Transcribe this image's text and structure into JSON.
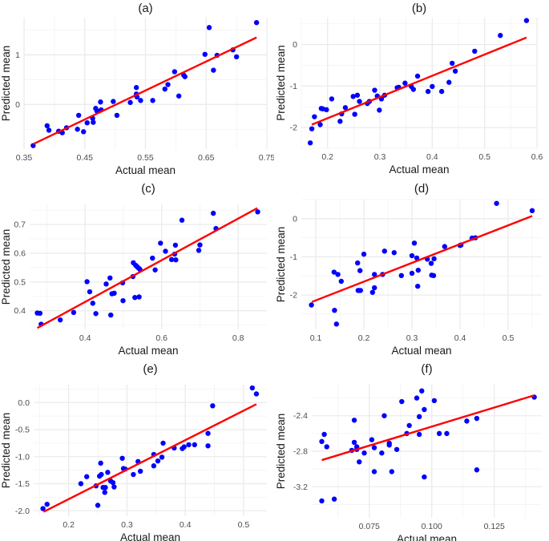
{
  "chart_data": [
    {
      "type": "scatter",
      "title": "(a)",
      "xlabel": "Actual mean",
      "ylabel": "Predicted mean",
      "xlim": [
        0.35,
        0.75
      ],
      "ylim": [
        -0.9,
        1.75
      ],
      "xticks": [
        0.35,
        0.45,
        0.55,
        0.65,
        0.75
      ],
      "xtick_labels": [
        "0.35",
        "0.45",
        "0.55",
        "0.65",
        "0.75"
      ],
      "yticks": [
        0,
        1
      ],
      "ytick_labels": [
        "0",
        "1"
      ],
      "grid": true,
      "point_color": "#0000ff",
      "line_color": "#ff0000",
      "fit_line": [
        [
          0.365,
          -0.8
        ],
        [
          0.733,
          1.35
        ]
      ],
      "points": [
        [
          0.365,
          -0.83
        ],
        [
          0.388,
          -0.43
        ],
        [
          0.391,
          -0.52
        ],
        [
          0.407,
          -0.54
        ],
        [
          0.413,
          -0.57
        ],
        [
          0.42,
          -0.47
        ],
        [
          0.44,
          -0.22
        ],
        [
          0.438,
          -0.5
        ],
        [
          0.448,
          -0.55
        ],
        [
          0.454,
          -0.37
        ],
        [
          0.463,
          -0.28
        ],
        [
          0.464,
          -0.36
        ],
        [
          0.468,
          -0.08
        ],
        [
          0.47,
          -0.13
        ],
        [
          0.476,
          0.05
        ],
        [
          0.477,
          -0.11
        ],
        [
          0.497,
          0.06
        ],
        [
          0.503,
          -0.22
        ],
        [
          0.525,
          0.04
        ],
        [
          0.535,
          0.34
        ],
        [
          0.535,
          0.21
        ],
        [
          0.536,
          0.15
        ],
        [
          0.542,
          0.08
        ],
        [
          0.562,
          0.08
        ],
        [
          0.582,
          0.31
        ],
        [
          0.587,
          0.4
        ],
        [
          0.598,
          0.66
        ],
        [
          0.605,
          0.17
        ],
        [
          0.613,
          0.59
        ],
        [
          0.615,
          0.56
        ],
        [
          0.648,
          1.01
        ],
        [
          0.655,
          1.55
        ],
        [
          0.662,
          0.69
        ],
        [
          0.668,
          0.99
        ],
        [
          0.694,
          1.1
        ],
        [
          0.7,
          0.96
        ],
        [
          0.733,
          1.65
        ]
      ]
    },
    {
      "type": "scatter",
      "title": "(b)",
      "xlabel": "Actual mean",
      "ylabel": "Predicted mean",
      "xlim": [
        0.15,
        0.6
      ],
      "ylim": [
        -2.5,
        0.65
      ],
      "xticks": [
        0.2,
        0.3,
        0.4,
        0.5,
        0.6
      ],
      "xtick_labels": [
        "0.2",
        "0.3",
        "0.4",
        "0.5",
        "0.6"
      ],
      "yticks": [
        -2,
        -1,
        0
      ],
      "ytick_labels": [
        "-2",
        "-1",
        "0"
      ],
      "grid": true,
      "point_color": "#0000ff",
      "line_color": "#ff0000",
      "fit_line": [
        [
          0.17,
          -1.93
        ],
        [
          0.58,
          0.17
        ]
      ],
      "points": [
        [
          0.167,
          -2.37
        ],
        [
          0.17,
          -2.03
        ],
        [
          0.175,
          -1.74
        ],
        [
          0.186,
          -1.93
        ],
        [
          0.188,
          -1.54
        ],
        [
          0.191,
          -1.55
        ],
        [
          0.198,
          -1.57
        ],
        [
          0.208,
          -1.31
        ],
        [
          0.224,
          -1.85
        ],
        [
          0.227,
          -1.67
        ],
        [
          0.234,
          -1.52
        ],
        [
          0.249,
          -1.25
        ],
        [
          0.252,
          -1.68
        ],
        [
          0.257,
          -1.22
        ],
        [
          0.261,
          -1.37
        ],
        [
          0.276,
          -1.42
        ],
        [
          0.28,
          -1.37
        ],
        [
          0.29,
          -1.1
        ],
        [
          0.295,
          -1.24
        ],
        [
          0.299,
          -1.58
        ],
        [
          0.303,
          -1.31
        ],
        [
          0.309,
          -1.22
        ],
        [
          0.333,
          -1.04
        ],
        [
          0.336,
          -1.03
        ],
        [
          0.348,
          -0.93
        ],
        [
          0.36,
          -1.01
        ],
        [
          0.364,
          -1.08
        ],
        [
          0.372,
          -0.76
        ],
        [
          0.392,
          -1.13
        ],
        [
          0.4,
          -1.01
        ],
        [
          0.418,
          -1.13
        ],
        [
          0.432,
          -0.91
        ],
        [
          0.438,
          -0.45
        ],
        [
          0.444,
          -0.64
        ],
        [
          0.481,
          -0.16
        ],
        [
          0.53,
          0.22
        ],
        [
          0.58,
          0.58
        ]
      ]
    },
    {
      "type": "scatter",
      "title": "(c)",
      "xlabel": "Actual mean",
      "ylabel": "Predicted mean",
      "xlim": [
        0.255,
        0.875
      ],
      "ylim": [
        0.335,
        0.77
      ],
      "xticks": [
        0.4,
        0.6,
        0.8
      ],
      "xtick_labels": [
        "0.4",
        "0.6",
        "0.8"
      ],
      "yticks": [
        0.4,
        0.5,
        0.6,
        0.7
      ],
      "ytick_labels": [
        "0.4",
        "0.5",
        "0.6",
        "0.7"
      ],
      "grid": true,
      "point_color": "#0000ff",
      "line_color": "#ff0000",
      "fit_line": [
        [
          0.275,
          0.34
        ],
        [
          0.85,
          0.757
        ]
      ],
      "points": [
        [
          0.275,
          0.392
        ],
        [
          0.282,
          0.391
        ],
        [
          0.285,
          0.353
        ],
        [
          0.335,
          0.368
        ],
        [
          0.37,
          0.394
        ],
        [
          0.405,
          0.501
        ],
        [
          0.412,
          0.466
        ],
        [
          0.42,
          0.426
        ],
        [
          0.428,
          0.39
        ],
        [
          0.455,
          0.493
        ],
        [
          0.465,
          0.514
        ],
        [
          0.467,
          0.385
        ],
        [
          0.47,
          0.459
        ],
        [
          0.476,
          0.461
        ],
        [
          0.498,
          0.497
        ],
        [
          0.499,
          0.435
        ],
        [
          0.525,
          0.519
        ],
        [
          0.526,
          0.567
        ],
        [
          0.53,
          0.446
        ],
        [
          0.532,
          0.558
        ],
        [
          0.536,
          0.553
        ],
        [
          0.54,
          0.548
        ],
        [
          0.543,
          0.544
        ],
        [
          0.541,
          0.448
        ],
        [
          0.576,
          0.583
        ],
        [
          0.583,
          0.542
        ],
        [
          0.597,
          0.635
        ],
        [
          0.61,
          0.607
        ],
        [
          0.626,
          0.578
        ],
        [
          0.634,
          0.597
        ],
        [
          0.636,
          0.628
        ],
        [
          0.637,
          0.577
        ],
        [
          0.653,
          0.715
        ],
        [
          0.697,
          0.61
        ],
        [
          0.7,
          0.629
        ],
        [
          0.735,
          0.739
        ],
        [
          0.742,
          0.686
        ],
        [
          0.851,
          0.744
        ]
      ]
    },
    {
      "type": "scatter",
      "title": "(d)",
      "xlabel": "Actual mean",
      "ylabel": "Predicted mean",
      "xlim": [
        0.07,
        0.57
      ],
      "ylim": [
        -2.9,
        0.5
      ],
      "xticks": [
        0.1,
        0.2,
        0.3,
        0.4,
        0.5
      ],
      "xtick_labels": [
        "0.1",
        "0.2",
        "0.3",
        "0.4",
        "0.5"
      ],
      "yticks": [
        -2,
        -1,
        0
      ],
      "ytick_labels": [
        "-2",
        "-1",
        "0"
      ],
      "grid": true,
      "point_color": "#0000ff",
      "line_color": "#ff0000",
      "fit_line": [
        [
          0.092,
          -2.18
        ],
        [
          0.55,
          0.07
        ]
      ],
      "points": [
        [
          0.091,
          -2.26
        ],
        [
          0.138,
          -1.4
        ],
        [
          0.139,
          -2.4
        ],
        [
          0.143,
          -2.76
        ],
        [
          0.146,
          -1.46
        ],
        [
          0.153,
          -1.64
        ],
        [
          0.187,
          -1.16
        ],
        [
          0.188,
          -1.88
        ],
        [
          0.19,
          -1.88
        ],
        [
          0.192,
          -1.36
        ],
        [
          0.193,
          -1.88
        ],
        [
          0.2,
          -0.93
        ],
        [
          0.218,
          -1.93
        ],
        [
          0.222,
          -1.81
        ],
        [
          0.222,
          -1.46
        ],
        [
          0.239,
          -1.46
        ],
        [
          0.243,
          -0.85
        ],
        [
          0.263,
          -0.89
        ],
        [
          0.278,
          -1.49
        ],
        [
          0.3,
          -0.97
        ],
        [
          0.3,
          -1.43
        ],
        [
          0.305,
          -0.64
        ],
        [
          0.31,
          -1.03
        ],
        [
          0.312,
          -1.77
        ],
        [
          0.313,
          -1.35
        ],
        [
          0.332,
          -1.06
        ],
        [
          0.34,
          -1.17
        ],
        [
          0.341,
          -1.48
        ],
        [
          0.345,
          -1.49
        ],
        [
          0.346,
          -1.05
        ],
        [
          0.368,
          -0.73
        ],
        [
          0.4,
          -0.7
        ],
        [
          0.402,
          -0.69
        ],
        [
          0.425,
          -0.51
        ],
        [
          0.432,
          -0.5
        ],
        [
          0.476,
          0.4
        ],
        [
          0.55,
          0.21
        ]
      ]
    },
    {
      "type": "scatter",
      "title": "(e)",
      "xlabel": "Actual mean",
      "ylabel": "Predicted mean",
      "xlim": [
        0.14,
        0.54
      ],
      "ylim": [
        -2.1,
        0.33
      ],
      "xticks": [
        0.2,
        0.3,
        0.4,
        0.5
      ],
      "xtick_labels": [
        "0.2",
        "0.3",
        "0.4",
        "0.5"
      ],
      "yticks": [
        -2.0,
        -1.5,
        -1.0,
        -0.5,
        0.0
      ],
      "ytick_labels": [
        "-2.0",
        "-1.5",
        "-1.0",
        "-0.5",
        "0.0"
      ],
      "grid": true,
      "point_color": "#0000ff",
      "line_color": "#ff0000",
      "fit_line": [
        [
          0.157,
          -2.02
        ],
        [
          0.522,
          -0.03
        ]
      ],
      "points": [
        [
          0.156,
          -1.96
        ],
        [
          0.163,
          -1.88
        ],
        [
          0.221,
          -1.5
        ],
        [
          0.231,
          -1.37
        ],
        [
          0.247,
          -1.54
        ],
        [
          0.25,
          -1.9
        ],
        [
          0.253,
          -1.36
        ],
        [
          0.255,
          -1.12
        ],
        [
          0.256,
          -1.33
        ],
        [
          0.259,
          -1.57
        ],
        [
          0.262,
          -1.66
        ],
        [
          0.263,
          -1.57
        ],
        [
          0.267,
          -1.29
        ],
        [
          0.272,
          -1.45
        ],
        [
          0.276,
          -1.48
        ],
        [
          0.278,
          -1.56
        ],
        [
          0.292,
          -1.03
        ],
        [
          0.294,
          -1.22
        ],
        [
          0.297,
          -1.23
        ],
        [
          0.311,
          -1.33
        ],
        [
          0.319,
          -1.09
        ],
        [
          0.323,
          -1.27
        ],
        [
          0.346,
          -0.96
        ],
        [
          0.346,
          -1.17
        ],
        [
          0.353,
          -1.08
        ],
        [
          0.36,
          -1.01
        ],
        [
          0.362,
          -0.75
        ],
        [
          0.381,
          -0.84
        ],
        [
          0.395,
          -0.85
        ],
        [
          0.398,
          -0.82
        ],
        [
          0.406,
          -0.78
        ],
        [
          0.416,
          -0.78
        ],
        [
          0.439,
          -0.57
        ],
        [
          0.439,
          -0.8
        ],
        [
          0.447,
          -0.06
        ],
        [
          0.515,
          0.27
        ],
        [
          0.522,
          0.16
        ]
      ]
    },
    {
      "type": "scatter",
      "title": "(f)",
      "xlabel": "Actual mean",
      "ylabel": "Predicted mean",
      "xlim": [
        0.052,
        0.144
      ],
      "ylim": [
        -3.55,
        -2.05
      ],
      "xticks": [
        0.075,
        0.1,
        0.125
      ],
      "xtick_labels": [
        "0.075",
        "0.100",
        "0.125"
      ],
      "yticks": [
        -3.2,
        -2.8,
        -2.4
      ],
      "ytick_labels": [
        "-3.2",
        "-2.8",
        "-2.4"
      ],
      "grid": true,
      "point_color": "#0000ff",
      "line_color": "#ff0000",
      "fit_line": [
        [
          0.056,
          -2.9
        ],
        [
          0.141,
          -2.17
        ]
      ],
      "points": [
        [
          0.056,
          -3.36
        ],
        [
          0.056,
          -2.69
        ],
        [
          0.057,
          -2.61
        ],
        [
          0.058,
          -2.75
        ],
        [
          0.061,
          -3.34
        ],
        [
          0.068,
          -2.79
        ],
        [
          0.069,
          -2.7
        ],
        [
          0.069,
          -2.45
        ],
        [
          0.07,
          -2.75
        ],
        [
          0.07,
          -2.78
        ],
        [
          0.071,
          -2.92
        ],
        [
          0.073,
          -2.82
        ],
        [
          0.076,
          -2.67
        ],
        [
          0.077,
          -3.03
        ],
        [
          0.077,
          -2.76
        ],
        [
          0.08,
          -2.82
        ],
        [
          0.081,
          -2.4
        ],
        [
          0.083,
          -2.73
        ],
        [
          0.083,
          -2.71
        ],
        [
          0.084,
          -3.03
        ],
        [
          0.086,
          -2.78
        ],
        [
          0.088,
          -2.24
        ],
        [
          0.09,
          -2.6
        ],
        [
          0.091,
          -2.51
        ],
        [
          0.094,
          -2.2
        ],
        [
          0.095,
          -2.41
        ],
        [
          0.095,
          -2.61
        ],
        [
          0.096,
          -2.12
        ],
        [
          0.097,
          -2.33
        ],
        [
          0.097,
          -3.09
        ],
        [
          0.101,
          -2.23
        ],
        [
          0.103,
          -2.6
        ],
        [
          0.106,
          -2.6
        ],
        [
          0.114,
          -2.46
        ],
        [
          0.118,
          -3.01
        ],
        [
          0.118,
          -2.43
        ],
        [
          0.141,
          -2.19
        ]
      ]
    }
  ]
}
